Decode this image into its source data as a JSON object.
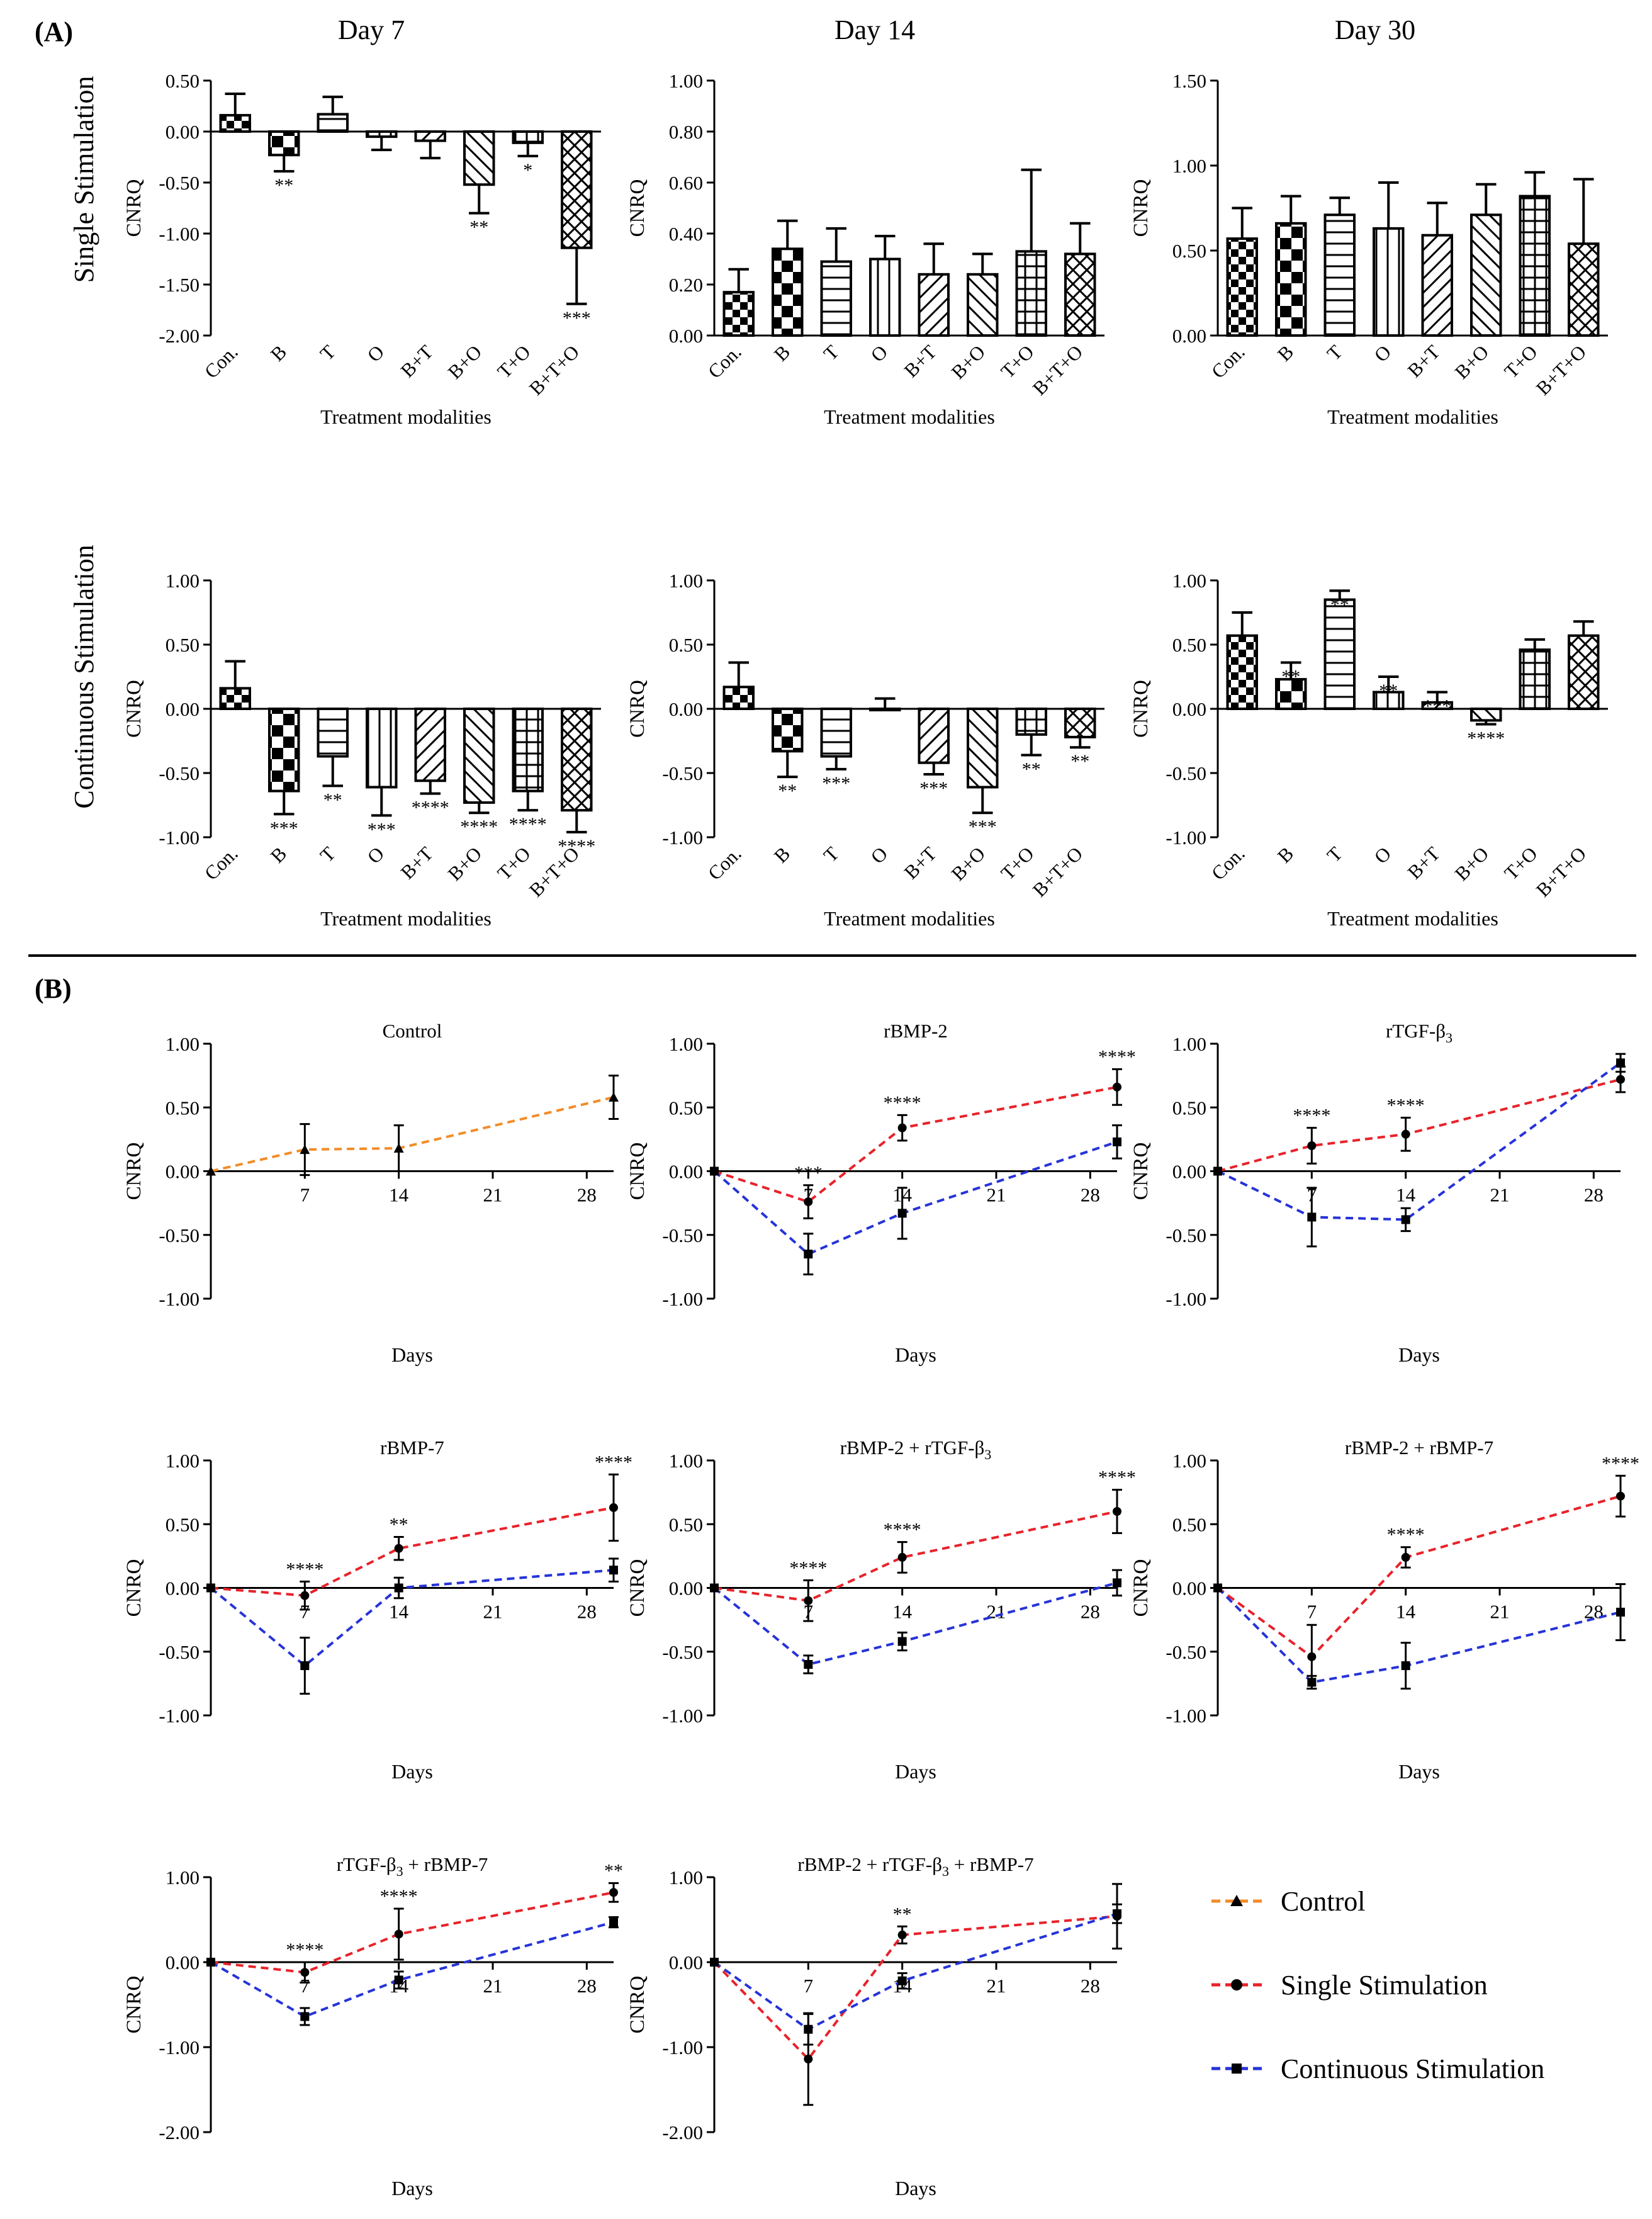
{
  "panels": {
    "A": "(A)",
    "B": "(B)"
  },
  "row_labels": {
    "single": "Single Stimulation",
    "continuous": "Continuous Stimulation"
  },
  "columns": {
    "day7": "Day 7",
    "day14": "Day 14",
    "day30": "Day 30"
  },
  "legend": [
    {
      "name": "Control",
      "color": "#f28c28",
      "marker": "triangle"
    },
    {
      "name": "Single Stimulation",
      "color": "#e8222a",
      "marker": "circle"
    },
    {
      "name": "Continuous Stimulation",
      "color": "#2633d8",
      "marker": "square"
    }
  ],
  "chart_data": [
    {
      "id": "A-single-7",
      "type": "bar",
      "title": "",
      "xlabel": "Treatment modalities",
      "ylabel": "CNRQ",
      "categories": [
        "Con.",
        "B",
        "T",
        "O",
        "B+T",
        "B+O",
        "T+O",
        "B+T+O"
      ],
      "values": [
        0.16,
        -0.23,
        0.17,
        -0.05,
        -0.09,
        -0.52,
        -0.11,
        -1.14
      ],
      "errors": [
        0.21,
        0.16,
        0.17,
        0.13,
        0.17,
        0.28,
        0.13,
        0.55
      ],
      "stars": [
        "",
        "**",
        "",
        "",
        "",
        "**",
        "*",
        "***"
      ],
      "ylim": [
        -2.0,
        0.5
      ],
      "yticks": [
        0.5,
        0,
        -0.5,
        -1,
        -1.5,
        -2
      ],
      "tick_labels": [
        "0.50",
        "0.00",
        "-0.50",
        "-1.00",
        "-1.50",
        "-2.00"
      ]
    },
    {
      "id": "A-single-14",
      "type": "bar",
      "title": "",
      "xlabel": "Treatment modalities",
      "ylabel": "CNRQ",
      "categories": [
        "Con.",
        "B",
        "T",
        "O",
        "B+T",
        "B+O",
        "T+O",
        "B+T+O"
      ],
      "values": [
        0.17,
        0.34,
        0.29,
        0.3,
        0.24,
        0.24,
        0.33,
        0.32
      ],
      "errors": [
        0.09,
        0.11,
        0.13,
        0.09,
        0.12,
        0.08,
        0.32,
        0.12
      ],
      "stars": [
        "",
        "",
        "",
        "",
        "",
        "",
        "",
        ""
      ],
      "ylim": [
        0,
        1
      ],
      "yticks": [
        1,
        0.8,
        0.6,
        0.4,
        0.2,
        0
      ],
      "tick_labels": [
        "1.00",
        "0.80",
        "0.60",
        "0.40",
        "0.20",
        "0.00"
      ]
    },
    {
      "id": "A-single-30",
      "type": "bar",
      "title": "",
      "xlabel": "Treatment modalities",
      "ylabel": "CNRQ",
      "categories": [
        "Con.",
        "B",
        "T",
        "O",
        "B+T",
        "B+O",
        "T+O",
        "B+T+O"
      ],
      "values": [
        0.57,
        0.66,
        0.71,
        0.63,
        0.59,
        0.71,
        0.82,
        0.54
      ],
      "errors": [
        0.18,
        0.16,
        0.1,
        0.27,
        0.19,
        0.18,
        0.14,
        0.38
      ],
      "stars": [
        "",
        "",
        "",
        "",
        "",
        "",
        "",
        ""
      ],
      "ylim": [
        0,
        1.5
      ],
      "yticks": [
        1.5,
        1,
        0.5,
        0
      ],
      "tick_labels": [
        "1.50",
        "1.00",
        "0.50",
        "0.00"
      ]
    },
    {
      "id": "A-cont-7",
      "type": "bar",
      "title": "",
      "xlabel": "Treatment modalities",
      "ylabel": "CNRQ",
      "categories": [
        "Con.",
        "B",
        "T",
        "O",
        "B+T",
        "B+O",
        "T+O",
        "B+T+O"
      ],
      "values": [
        0.16,
        -0.64,
        -0.37,
        -0.61,
        -0.56,
        -0.73,
        -0.64,
        -0.79
      ],
      "errors": [
        0.21,
        0.18,
        0.23,
        0.22,
        0.1,
        0.08,
        0.15,
        0.17
      ],
      "stars": [
        "",
        "***",
        "**",
        "***",
        "****",
        "****",
        "****",
        "****"
      ],
      "ylim": [
        -1,
        1
      ],
      "yticks": [
        1,
        0.5,
        0,
        -0.5,
        -1
      ],
      "tick_labels": [
        "1.00",
        "0.50",
        "0.00",
        "-0.50",
        "-1.00"
      ]
    },
    {
      "id": "A-cont-14",
      "type": "bar",
      "title": "",
      "xlabel": "Treatment modalities",
      "ylabel": "CNRQ",
      "categories": [
        "Con.",
        "B",
        "T",
        "O",
        "B+T",
        "B+O",
        "T+O",
        "B+T+O"
      ],
      "values": [
        0.17,
        -0.33,
        -0.37,
        0.0,
        -0.42,
        -0.61,
        -0.2,
        -0.22
      ],
      "errors": [
        0.19,
        0.2,
        0.1,
        0.08,
        0.09,
        0.2,
        0.16,
        0.08
      ],
      "stars": [
        "",
        "**",
        "***",
        "",
        "***",
        "***",
        "**",
        "**"
      ],
      "ylim": [
        -1,
        1
      ],
      "yticks": [
        1,
        0.5,
        0,
        -0.5,
        -1
      ],
      "tick_labels": [
        "1.00",
        "0.50",
        "0.00",
        "-0.50",
        "-1.00"
      ]
    },
    {
      "id": "A-cont-30",
      "type": "bar",
      "title": "",
      "xlabel": "Treatment modalities",
      "ylabel": "CNRQ",
      "categories": [
        "Con.",
        "B",
        "T",
        "O",
        "B+T",
        "B+O",
        "T+O",
        "B+T+O"
      ],
      "values": [
        0.57,
        0.23,
        0.85,
        0.13,
        0.05,
        -0.09,
        0.46,
        0.57
      ],
      "errors": [
        0.18,
        0.13,
        0.07,
        0.12,
        0.08,
        0.03,
        0.08,
        0.11
      ],
      "stars": [
        "",
        "**",
        "**",
        "**",
        "***",
        "****",
        "",
        ""
      ],
      "ylim": [
        -1,
        1
      ],
      "yticks": [
        1,
        0.5,
        0,
        -0.5,
        -1
      ],
      "tick_labels": [
        "1.00",
        "0.50",
        "0.00",
        "-0.50",
        "-1.00"
      ]
    },
    {
      "id": "B-control",
      "type": "line",
      "title": "Control",
      "xlabel": "Days",
      "ylabel": "CNRQ",
      "xticks": [
        7,
        14,
        21,
        28
      ],
      "xlim": [
        0,
        30
      ],
      "ylim": [
        -1,
        1
      ],
      "yticks": [
        1,
        0.5,
        0,
        -0.5,
        -1
      ],
      "tick_labels": [
        "1.00",
        "0.50",
        "0.00",
        "-0.50",
        "-1.00"
      ],
      "series": [
        {
          "name": "Control",
          "x": [
            0,
            7,
            14,
            30
          ],
          "y": [
            0,
            0.17,
            0.18,
            0.58
          ],
          "err": [
            0,
            0.2,
            0.18,
            0.17
          ]
        }
      ],
      "stars": []
    },
    {
      "id": "B-bmp2",
      "type": "line",
      "title": "rBMP-2",
      "xlabel": "Days",
      "ylabel": "CNRQ",
      "xticks": [
        7,
        14,
        21,
        28
      ],
      "xlim": [
        0,
        30
      ],
      "ylim": [
        -1,
        1
      ],
      "yticks": [
        1,
        0.5,
        0,
        -0.5,
        -1
      ],
      "tick_labels": [
        "1.00",
        "0.50",
        "0.00",
        "-0.50",
        "-1.00"
      ],
      "series": [
        {
          "name": "Single Stimulation",
          "x": [
            0,
            7,
            14,
            30
          ],
          "y": [
            0,
            -0.24,
            0.34,
            0.66
          ],
          "err": [
            0,
            0.13,
            0.1,
            0.14
          ]
        },
        {
          "name": "Continuous Stimulation",
          "x": [
            0,
            7,
            14,
            30
          ],
          "y": [
            0,
            -0.65,
            -0.33,
            0.23
          ],
          "err": [
            0,
            0.16,
            0.2,
            0.13
          ]
        }
      ],
      "stars": [
        {
          "x": 7,
          "text": "***"
        },
        {
          "x": 14,
          "text": "****"
        },
        {
          "x": 30,
          "text": "****"
        }
      ]
    },
    {
      "id": "B-tgf",
      "type": "line",
      "title": "rTGF-β",
      "title_sub": "3",
      "xlabel": "Days",
      "ylabel": "CNRQ",
      "xticks": [
        7,
        14,
        21,
        28
      ],
      "xlim": [
        0,
        30
      ],
      "ylim": [
        -1,
        1
      ],
      "yticks": [
        1,
        0.5,
        0,
        -0.5,
        -1
      ],
      "tick_labels": [
        "1.00",
        "0.50",
        "0.00",
        "-0.50",
        "-1.00"
      ],
      "series": [
        {
          "name": "Single Stimulation",
          "x": [
            0,
            7,
            14,
            30
          ],
          "y": [
            0,
            0.2,
            0.29,
            0.72
          ],
          "err": [
            0,
            0.14,
            0.13,
            0.1
          ]
        },
        {
          "name": "Continuous Stimulation",
          "x": [
            0,
            7,
            14,
            30
          ],
          "y": [
            0,
            -0.36,
            -0.38,
            0.85
          ],
          "err": [
            0,
            0.23,
            0.09,
            0.07
          ]
        }
      ],
      "stars": [
        {
          "x": 7,
          "text": "****"
        },
        {
          "x": 14,
          "text": "****"
        }
      ]
    },
    {
      "id": "B-bmp7",
      "type": "line",
      "title": "rBMP-7",
      "xlabel": "Days",
      "ylabel": "CNRQ",
      "xticks": [
        7,
        14,
        21,
        28
      ],
      "xlim": [
        0,
        30
      ],
      "ylim": [
        -1,
        1
      ],
      "yticks": [
        1,
        0.5,
        0,
        -0.5,
        -1
      ],
      "tick_labels": [
        "1.00",
        "0.50",
        "0.00",
        "-0.50",
        "-1.00"
      ],
      "series": [
        {
          "name": "Single Stimulation",
          "x": [
            0,
            7,
            14,
            30
          ],
          "y": [
            0,
            -0.06,
            0.31,
            0.63
          ],
          "err": [
            0,
            0.11,
            0.09,
            0.26
          ]
        },
        {
          "name": "Continuous Stimulation",
          "x": [
            0,
            7,
            14,
            30
          ],
          "y": [
            0,
            -0.61,
            0.0,
            0.14
          ],
          "err": [
            0,
            0.22,
            0.08,
            0.09
          ]
        }
      ],
      "stars": [
        {
          "x": 7,
          "text": "****"
        },
        {
          "x": 14,
          "text": "**"
        },
        {
          "x": 30,
          "text": "****"
        }
      ]
    },
    {
      "id": "B-bmp2-tgf",
      "type": "line",
      "title": "rBMP-2 + rTGF-β",
      "title_sub": "3",
      "xlabel": "Days",
      "ylabel": "CNRQ",
      "xticks": [
        7,
        14,
        21,
        28
      ],
      "xlim": [
        0,
        30
      ],
      "ylim": [
        -1,
        1
      ],
      "yticks": [
        1,
        0.5,
        0,
        -0.5,
        -1
      ],
      "tick_labels": [
        "1.00",
        "0.50",
        "0.00",
        "-0.50",
        "-1.00"
      ],
      "series": [
        {
          "name": "Single Stimulation",
          "x": [
            0,
            7,
            14,
            30
          ],
          "y": [
            0,
            -0.1,
            0.24,
            0.6
          ],
          "err": [
            0,
            0.16,
            0.12,
            0.17
          ]
        },
        {
          "name": "Continuous Stimulation",
          "x": [
            0,
            7,
            14,
            30
          ],
          "y": [
            0,
            -0.6,
            -0.42,
            0.04
          ],
          "err": [
            0,
            0.07,
            0.07,
            0.1
          ]
        }
      ],
      "stars": [
        {
          "x": 7,
          "text": "****"
        },
        {
          "x": 14,
          "text": "****"
        },
        {
          "x": 30,
          "text": "****"
        }
      ]
    },
    {
      "id": "B-bmp2-bmp7",
      "type": "line",
      "title": "rBMP-2 + rBMP-7",
      "xlabel": "Days",
      "ylabel": "CNRQ",
      "xticks": [
        7,
        14,
        21,
        28
      ],
      "xlim": [
        0,
        30
      ],
      "ylim": [
        -1,
        1
      ],
      "yticks": [
        1,
        0.5,
        0,
        -0.5,
        -1
      ],
      "tick_labels": [
        "1.00",
        "0.50",
        "0.00",
        "-0.50",
        "-1.00"
      ],
      "series": [
        {
          "name": "Single Stimulation",
          "x": [
            0,
            7,
            14,
            30
          ],
          "y": [
            0,
            -0.54,
            0.24,
            0.72
          ],
          "err": [
            0,
            0.25,
            0.08,
            0.16
          ]
        },
        {
          "name": "Continuous Stimulation",
          "x": [
            0,
            7,
            14,
            30
          ],
          "y": [
            0,
            -0.74,
            -0.61,
            -0.19
          ],
          "err": [
            0,
            0.05,
            0.18,
            0.22
          ]
        }
      ],
      "stars": [
        {
          "x": 14,
          "text": "****"
        },
        {
          "x": 30,
          "text": "****"
        }
      ]
    },
    {
      "id": "B-tgf-bmp7",
      "type": "line",
      "title": "rTGF-β",
      "title_sub": "3",
      "title_tail": " + rBMP-7",
      "xlabel": "Days",
      "ylabel": "CNRQ",
      "xticks": [
        7,
        14,
        21,
        28
      ],
      "xlim": [
        0,
        30
      ],
      "ylim": [
        -2,
        1
      ],
      "yticks": [
        1,
        0,
        -1,
        -2
      ],
      "tick_labels": [
        "1.00",
        "0.00",
        "-1.00",
        "-2.00"
      ],
      "series": [
        {
          "name": "Single Stimulation",
          "x": [
            0,
            7,
            14,
            30
          ],
          "y": [
            0,
            -0.12,
            0.33,
            0.82
          ],
          "err": [
            0,
            0.12,
            0.3,
            0.11
          ]
        },
        {
          "name": "Continuous Stimulation",
          "x": [
            0,
            7,
            14,
            30
          ],
          "y": [
            0,
            -0.64,
            -0.21,
            0.47
          ],
          "err": [
            0,
            0.1,
            0.1,
            0.06
          ]
        }
      ],
      "stars": [
        {
          "x": 7,
          "text": "****"
        },
        {
          "x": 14,
          "text": "****"
        },
        {
          "x": 30,
          "text": "**"
        }
      ]
    },
    {
      "id": "B-all",
      "type": "line",
      "title": "rBMP-2 + rTGF-β",
      "title_sub": "3",
      "title_tail": " + rBMP-7",
      "xlabel": "Days",
      "ylabel": "CNRQ",
      "xticks": [
        7,
        14,
        21,
        28
      ],
      "xlim": [
        0,
        30
      ],
      "ylim": [
        -2,
        1
      ],
      "yticks": [
        1,
        0,
        -1,
        -2
      ],
      "tick_labels": [
        "1.00",
        "0.00",
        "-1.00",
        "-2.00"
      ],
      "series": [
        {
          "name": "Single Stimulation",
          "x": [
            0,
            7,
            14,
            30
          ],
          "y": [
            0,
            -1.14,
            0.32,
            0.54
          ],
          "err": [
            0,
            0.54,
            0.1,
            0.38
          ]
        },
        {
          "name": "Continuous Stimulation",
          "x": [
            0,
            7,
            14,
            30
          ],
          "y": [
            0,
            -0.79,
            -0.22,
            0.57
          ],
          "err": [
            0,
            0.18,
            0.09,
            0.11
          ]
        }
      ],
      "stars": [
        {
          "x": 14,
          "text": "**"
        }
      ]
    }
  ]
}
